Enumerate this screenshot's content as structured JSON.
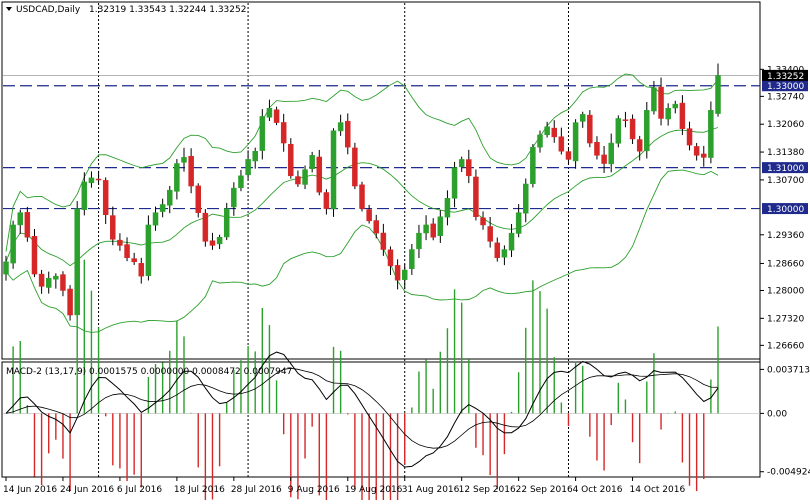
{
  "header": {
    "symbol": "USDCAD,Daily",
    "ohlc": "1.32319 1.33543 1.32244 1.33252",
    "macd_label": "MACD-2 (13,17,9) 0.0001575 0.0000000 0.0008472 0.0007947"
  },
  "colors": {
    "bull": "#2ca02c",
    "bear": "#d62728",
    "band": "#2ca02c",
    "hline": "#1f2a8c",
    "price_badge": "#000000",
    "level_badge": "#1f2a8c"
  },
  "chart_data": [
    {
      "type": "candlestick",
      "title": "USDCAD,Daily",
      "ylim": [
        1.264,
        1.348
      ],
      "price_ticks": [
        "1.33400",
        "1.32740",
        "1.32060",
        "1.31380",
        "1.30700",
        "1.29360",
        "1.28660",
        "1.28000",
        "1.27320",
        "1.26660"
      ],
      "date_labels": [
        "14 Jun 2016",
        "24 Jun 2016",
        "6 Jul 2016",
        "18 Jul 2016",
        "28 Jul 2016",
        "9 Aug 2016",
        "19 Aug 2016",
        "31 Aug 2016",
        "12 Sep 2016",
        "22 Sep 2016",
        "4 Oct 2016",
        "14 Oct 2016"
      ],
      "date_label_index": [
        0,
        8,
        16,
        24,
        32,
        40,
        48,
        56,
        64,
        72,
        80,
        88
      ],
      "vline_index": [
        13,
        34,
        56,
        79
      ],
      "levels": [
        {
          "value": 1.33,
          "label": "1.33000"
        },
        {
          "value": 1.31,
          "label": "1.31000"
        },
        {
          "value": 1.3,
          "label": "1.30000"
        }
      ],
      "current_price": {
        "value": 1.33252,
        "label": "1.33252"
      },
      "closes": [
        1.287,
        1.296,
        1.299,
        1.293,
        1.284,
        1.281,
        1.283,
        1.2835,
        1.28,
        1.274,
        1.3,
        1.3065,
        1.3075,
        1.307,
        1.2985,
        1.2925,
        1.291,
        1.288,
        1.287,
        1.2835,
        1.296,
        1.299,
        1.301,
        1.3045,
        1.311,
        1.3125,
        1.3055,
        1.299,
        1.292,
        1.291,
        1.293,
        1.3,
        1.305,
        1.308,
        1.312,
        1.314,
        1.3225,
        1.3245,
        1.321,
        1.316,
        1.308,
        1.306,
        1.3095,
        1.313,
        1.304,
        1.3,
        1.319,
        1.321,
        1.315,
        1.3055,
        1.3,
        1.297,
        1.294,
        1.29,
        1.286,
        1.2825,
        1.285,
        1.29,
        1.294,
        1.296,
        1.293,
        1.298,
        1.3025,
        1.31,
        1.312,
        1.308,
        1.298,
        1.296,
        1.292,
        1.288,
        1.29,
        1.294,
        1.299,
        1.306,
        1.315,
        1.318,
        1.32,
        1.3175,
        1.314,
        1.312,
        1.321,
        1.323,
        1.316,
        1.313,
        1.311,
        1.316,
        1.322,
        1.3215,
        1.317,
        1.314,
        1.324,
        1.3295,
        1.322,
        1.3245,
        1.3255,
        1.3195,
        1.3155,
        1.313,
        1.3125,
        1.324,
        1.3325
      ],
      "macd_ylim": [
        -0.0052,
        0.004
      ],
      "macd_ticks": [
        "0.003713",
        "0.00",
        "-0.004924"
      ]
    }
  ]
}
